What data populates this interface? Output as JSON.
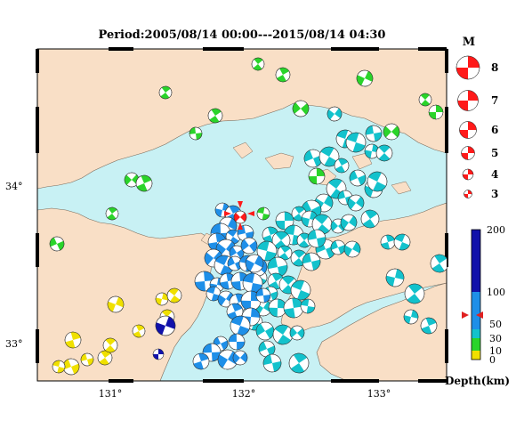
{
  "title": "Period:2005/08/14 00:00---2015/08/14 04:30",
  "map": {
    "lon_ticks": [
      "131°",
      "132°",
      "133°"
    ],
    "lat_ticks": [
      "34°",
      "33°"
    ],
    "colors": {
      "sea": "#c8f1f4",
      "land": "#f9dfc6",
      "coast": "#7a6a5a"
    }
  },
  "magnitude_legend": {
    "title": "M",
    "items": [
      {
        "label": "8",
        "value": 8
      },
      {
        "label": "7",
        "value": 7
      },
      {
        "label": "6",
        "value": 6
      },
      {
        "label": "5",
        "value": 5
      },
      {
        "label": "4",
        "value": 4
      },
      {
        "label": "3",
        "value": 3
      }
    ],
    "color": "#ff1a1a"
  },
  "depth_scale": {
    "ticks": [
      "200",
      "100",
      "50",
      "30",
      "10",
      "0"
    ],
    "unit_label": "Depth(km)",
    "colors": {
      "deep": "#1111aa",
      "mid": "#1e8fe8",
      "shallow": "#13c2cc",
      "very_shallow": "#2ad42a",
      "surface": "#f0e000"
    },
    "marker_depth_km": 48
  },
  "events": [
    {
      "type": "latest",
      "color": "#ff1a1a"
    },
    {
      "type": "deep",
      "color": "#1111aa"
    },
    {
      "type": "mid",
      "color": "#1e8fe8"
    },
    {
      "type": "shallow",
      "color": "#13c2cc"
    },
    {
      "type": "crustal",
      "color": "#2ad42a"
    },
    {
      "type": "surface",
      "color": "#f0e000"
    }
  ]
}
